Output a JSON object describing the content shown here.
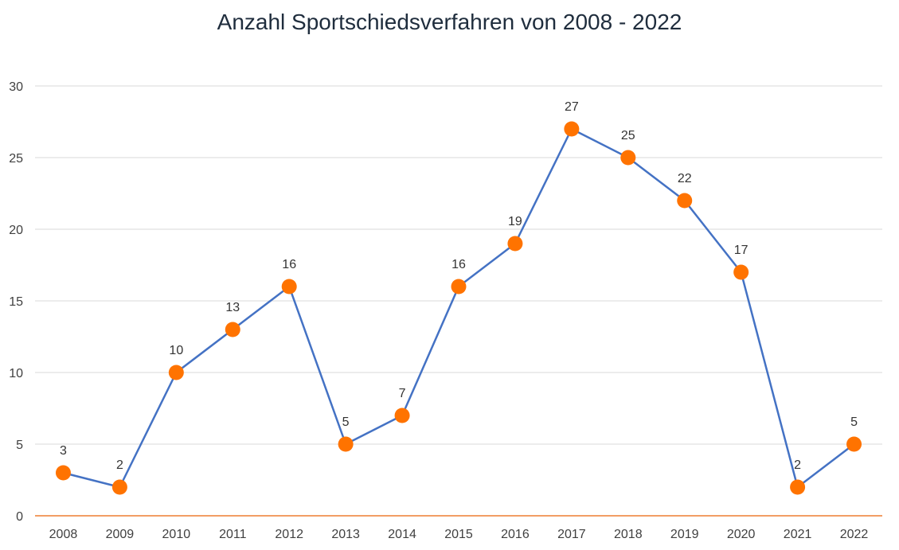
{
  "chart_data": {
    "type": "line",
    "title": "Anzahl Sportschiedsverfahren von 2008 - 2022",
    "xlabel": "",
    "ylabel": "",
    "categories": [
      "2008",
      "2009",
      "2010",
      "2011",
      "2012",
      "2013",
      "2014",
      "2015",
      "2016",
      "2017",
      "2018",
      "2019",
      "2020",
      "2021",
      "2022"
    ],
    "series": [
      {
        "values": [
          3,
          2,
          10,
          13,
          16,
          5,
          7,
          16,
          19,
          27,
          25,
          22,
          17,
          2,
          5
        ]
      }
    ],
    "ylim": [
      0,
      30
    ],
    "yticks": [
      "0",
      "5",
      "10",
      "15",
      "20",
      "25",
      "30"
    ],
    "data_labels": true,
    "grid": true,
    "legend": "none",
    "colors": {
      "line": "#4472c4",
      "marker": "#ff7300",
      "grid": "#d9d9d9",
      "x_axis": "#ed7d31",
      "title": "#1f2d3d"
    }
  }
}
